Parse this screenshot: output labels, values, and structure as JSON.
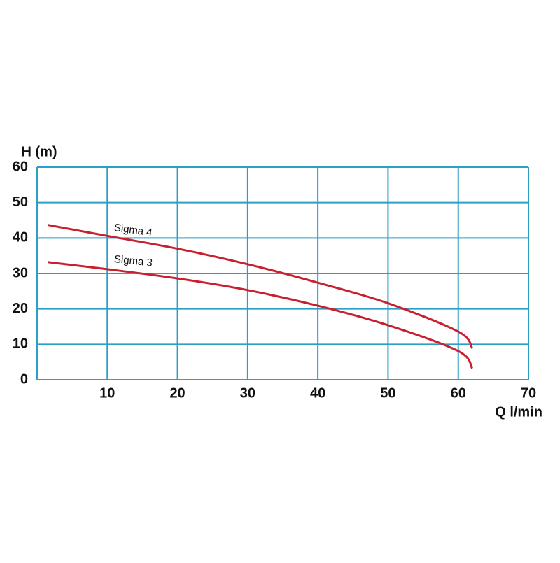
{
  "chart_data": {
    "type": "line",
    "y_label": "H (m)",
    "x_label": "Q l/min",
    "x": [
      1.5,
      10,
      20,
      30,
      40,
      50,
      60,
      62
    ],
    "series": [
      {
        "name": "Sigma 4",
        "color": "#c8202e",
        "values": [
          43.7,
          40.6,
          37,
          32.6,
          27.4,
          21.6,
          13.6,
          8.9
        ]
      },
      {
        "name": "Sigma 3",
        "color": "#c8202e",
        "values": [
          33.2,
          31.2,
          28.6,
          25.3,
          20.9,
          15.4,
          8.1,
          3.2
        ]
      }
    ],
    "xlim": [
      0,
      70
    ],
    "xticks": [
      10,
      20,
      30,
      40,
      50,
      60,
      70
    ],
    "ylim": [
      0,
      60
    ],
    "yticks": [
      0,
      10,
      20,
      30,
      40,
      50,
      60
    ],
    "grid": true,
    "grid_color": "#2b9fc7"
  }
}
